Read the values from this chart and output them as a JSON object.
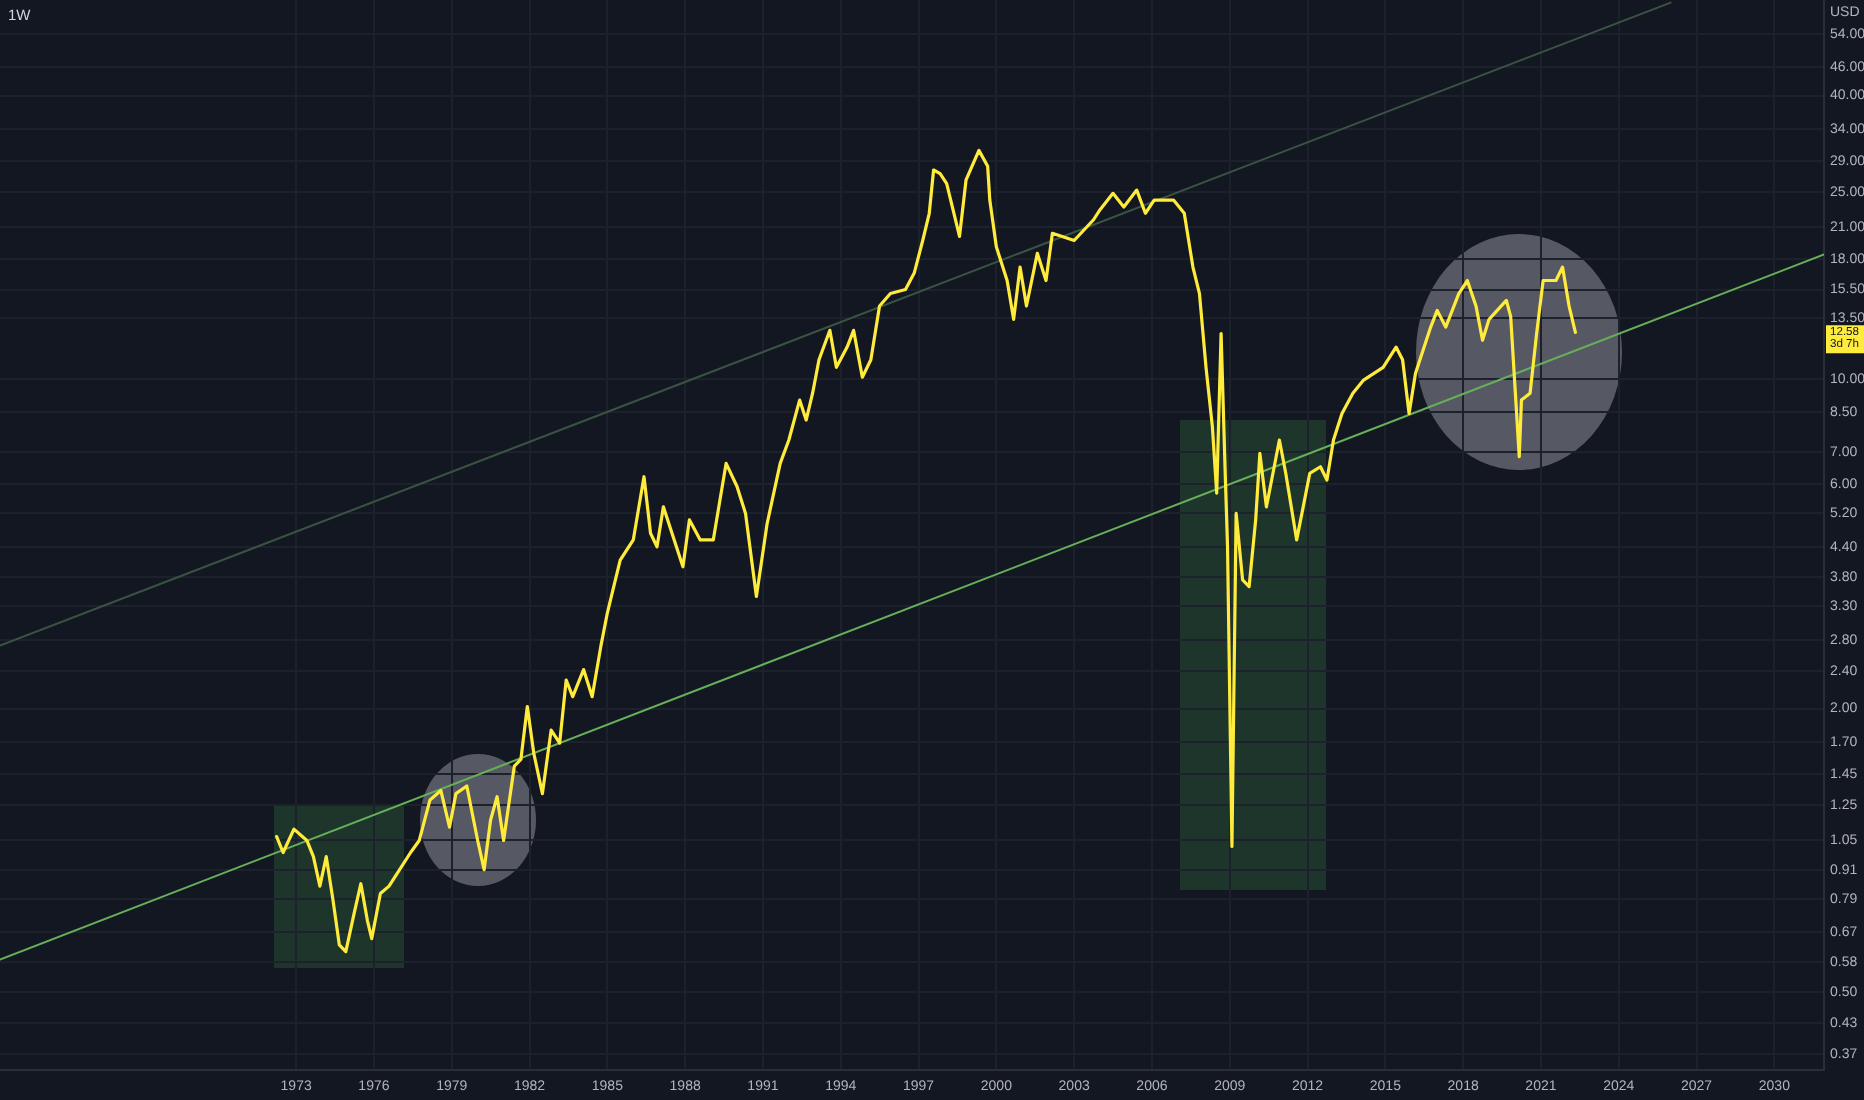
{
  "chart_data": {
    "type": "line",
    "title": "1W",
    "ylabel": "USD",
    "log": true,
    "grid": true,
    "legend": false,
    "marker": "none",
    "line_style": "solid",
    "xlim": [
      "1961-08",
      "2031-12"
    ],
    "xticks": [
      "1973",
      "1976",
      "1979",
      "1982",
      "1985",
      "1988",
      "1991",
      "1994",
      "1997",
      "2000",
      "2003",
      "2006",
      "2009",
      "2012",
      "2015",
      "2018",
      "2021",
      "2024",
      "2027",
      "2030"
    ],
    "ylim": [
      0.342,
      63.8
    ],
    "yticks": [
      {
        "value": 54,
        "label": "54.00"
      },
      {
        "value": 46,
        "label": "46.00"
      },
      {
        "value": 40,
        "label": "40.00"
      },
      {
        "value": 34,
        "label": "34.00"
      },
      {
        "value": 29,
        "label": "29.00"
      },
      {
        "value": 25,
        "label": "25.00"
      },
      {
        "value": 21,
        "label": "21.00"
      },
      {
        "value": 18,
        "label": "18.00"
      },
      {
        "value": 15.5,
        "label": "15.50"
      },
      {
        "value": 13.5,
        "label": "13.50"
      },
      {
        "value": 10,
        "label": "10.00"
      },
      {
        "value": 8.5,
        "label": "8.50"
      },
      {
        "value": 7,
        "label": "7.00"
      },
      {
        "value": 6,
        "label": "6.00"
      },
      {
        "value": 5.2,
        "label": "5.20"
      },
      {
        "value": 4.4,
        "label": "4.40"
      },
      {
        "value": 3.8,
        "label": "3.80"
      },
      {
        "value": 3.3,
        "label": "3.30"
      },
      {
        "value": 2.8,
        "label": "2.80"
      },
      {
        "value": 2.4,
        "label": "2.40"
      },
      {
        "value": 2,
        "label": "2.00"
      },
      {
        "value": 1.7,
        "label": "1.70"
      },
      {
        "value": 1.45,
        "label": "1.45"
      },
      {
        "value": 1.25,
        "label": "1.25"
      },
      {
        "value": 1.05,
        "label": "1.05"
      },
      {
        "value": 0.91,
        "label": "0.91"
      },
      {
        "value": 0.79,
        "label": "0.79"
      },
      {
        "value": 0.67,
        "label": "0.67"
      },
      {
        "value": 0.58,
        "label": "0.58"
      },
      {
        "value": 0.5,
        "label": "0.50"
      },
      {
        "value": 0.43,
        "label": "0.43"
      },
      {
        "value": 0.37,
        "label": "0.37"
      }
    ],
    "series": [
      {
        "color": "#ffeb3b",
        "x": [
          "1972-04",
          "1972-07",
          "1972-12",
          "1973-06",
          "1973-09",
          "1973-12",
          "1974-03",
          "1974-06",
          "1974-09",
          "1974-12",
          "1975-04",
          "1975-07",
          "1975-10",
          "1975-12",
          "1976-04",
          "1976-08",
          "1977-06",
          "1977-10",
          "1978-03",
          "1978-08",
          "1978-12",
          "1979-03",
          "1979-08",
          "1980-01",
          "1980-04",
          "1980-07",
          "1980-10",
          "1981-01",
          "1981-06",
          "1981-09",
          "1981-12",
          "1982-03",
          "1982-07",
          "1982-11",
          "1983-03",
          "1983-06",
          "1983-09",
          "1984-02",
          "1984-06",
          "1984-10",
          "1985-01",
          "1985-04",
          "1985-07",
          "1986-01",
          "1986-06",
          "1986-09",
          "1986-12",
          "1987-03",
          "1987-12",
          "1988-03",
          "1988-08",
          "1989-02",
          "1989-08",
          "1990-01",
          "1990-05",
          "1990-10",
          "1991-03",
          "1991-09",
          "1992-01",
          "1992-06",
          "1992-09",
          "1992-12",
          "1993-03",
          "1993-08",
          "1993-11",
          "1994-04",
          "1994-07",
          "1994-11",
          "1995-03",
          "1995-07",
          "1995-12",
          "1996-07",
          "1996-11",
          "1997-03",
          "1997-06",
          "1997-08",
          "1997-11",
          "1998-02",
          "1998-08",
          "1998-11",
          "1999-05",
          "1999-09",
          "1999-10",
          "2000-01",
          "2000-06",
          "2000-09",
          "2000-12",
          "2001-03",
          "2001-08",
          "2001-12",
          "2002-03",
          "2003-01",
          "2003-10",
          "2004-01",
          "2004-07",
          "2004-12",
          "2005-06",
          "2005-10",
          "2006-02",
          "2006-11",
          "2007-04",
          "2007-08",
          "2007-11",
          "2008-02",
          "2008-05",
          "2008-07",
          "2008-09",
          "2008-11",
          "2008-12",
          "2009-02",
          "2009-04",
          "2009-07",
          "2009-10",
          "2010-01",
          "2010-03",
          "2010-06",
          "2010-12",
          "2011-03",
          "2011-08",
          "2011-11",
          "2012-02",
          "2012-07",
          "2012-10",
          "2013-01",
          "2013-05",
          "2013-10",
          "2014-03",
          "2014-12",
          "2015-06",
          "2015-09",
          "2015-12",
          "2016-03",
          "2016-10",
          "2017-01",
          "2017-05",
          "2017-11",
          "2018-03",
          "2018-07",
          "2018-10",
          "2019-01",
          "2019-09",
          "2019-11",
          "2020-03",
          "2020-04",
          "2020-08",
          "2020-11",
          "2021-02",
          "2021-08",
          "2021-11",
          "2022-02",
          "2022-05"
        ],
        "values": [
          1.07,
          0.99,
          1.11,
          1.05,
          0.97,
          0.84,
          0.97,
          0.79,
          0.63,
          0.61,
          0.74,
          0.85,
          0.71,
          0.65,
          0.81,
          0.84,
          0.99,
          1.05,
          1.28,
          1.34,
          1.12,
          1.32,
          1.37,
          1.05,
          0.91,
          1.16,
          1.3,
          1.05,
          1.51,
          1.56,
          2.02,
          1.61,
          1.32,
          1.8,
          1.69,
          2.3,
          2.12,
          2.42,
          2.12,
          2.71,
          3.19,
          3.63,
          4.13,
          4.56,
          6.21,
          4.71,
          4.41,
          5.36,
          4.0,
          5.03,
          4.56,
          4.56,
          6.63,
          5.92,
          5.19,
          3.46,
          4.94,
          6.63,
          7.43,
          9.03,
          8.19,
          9.34,
          11.0,
          12.7,
          10.6,
          11.7,
          12.7,
          10.1,
          11.0,
          14.3,
          15.2,
          15.5,
          16.8,
          19.7,
          22.5,
          27.8,
          27.3,
          26.0,
          20.1,
          26.5,
          30.6,
          28.3,
          24.0,
          19.1,
          16.2,
          13.4,
          17.3,
          14.3,
          18.5,
          16.2,
          20.4,
          19.7,
          21.8,
          22.9,
          24.8,
          23.2,
          25.2,
          22.5,
          24.0,
          24.0,
          22.5,
          17.3,
          15.2,
          10.6,
          7.93,
          5.73,
          12.5,
          6.11,
          4.41,
          1.02,
          5.19,
          3.75,
          3.63,
          5.03,
          6.96,
          5.36,
          7.43,
          6.31,
          4.56,
          5.36,
          6.31,
          6.52,
          6.11,
          7.43,
          8.46,
          9.34,
          9.96,
          10.6,
          11.7,
          11.0,
          8.46,
          10.3,
          12.9,
          14.0,
          12.9,
          15.2,
          16.2,
          14.3,
          12.1,
          13.4,
          14.7,
          13.6,
          6.85,
          9.03,
          9.34,
          12.5,
          16.2,
          16.2,
          17.3,
          14.3,
          12.58
        ]
      },
      {
        "type": "line",
        "color": "#3a5443",
        "x": [
          "1961-08",
          "2026-01"
        ],
        "values": [
          2.72,
          63.0
        ]
      },
      {
        "type": "line",
        "color": "#66b05a",
        "x": [
          "1961-08",
          "2031-12"
        ],
        "values": [
          0.587,
          18.4
        ]
      }
    ],
    "annotations": [
      "12.58",
      "3d 7h"
    ]
  }
}
